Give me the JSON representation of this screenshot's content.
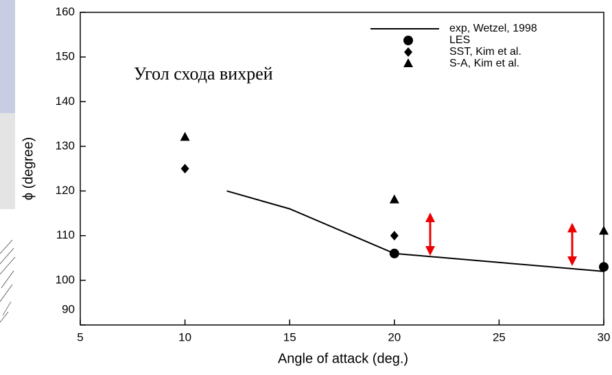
{
  "chart_data": {
    "type": "line",
    "annotation": "Угол схода вихрей",
    "x_label": "Angle of attack (deg.)",
    "y_label": "ϕ (degree)",
    "xlim": [
      5,
      30
    ],
    "xticks": [
      5,
      10,
      15,
      20,
      25,
      30
    ],
    "ylim": [
      90,
      160
    ],
    "yticks": [
      90,
      100,
      110,
      120,
      130,
      140,
      150,
      160
    ],
    "series": [
      {
        "name": "exp, Wetzel, 1998",
        "color": "#000000",
        "marker": "line",
        "x": [
          12,
          15,
          20,
          30
        ],
        "values": [
          120,
          116,
          106,
          102
        ]
      },
      {
        "name": "LES",
        "color": "#000000",
        "marker": "circle",
        "x": [
          20,
          30
        ],
        "values": [
          106,
          103
        ]
      },
      {
        "name": "SST, Kim et al.",
        "color": "#000000",
        "marker": "diamond",
        "x": [
          10,
          20
        ],
        "values": [
          125,
          110
        ]
      },
      {
        "name": "S-A, Kim et al.",
        "color": "#000000",
        "marker": "triangle",
        "x": [
          10,
          20,
          30
        ],
        "values": [
          132,
          118,
          111
        ]
      }
    ]
  }
}
